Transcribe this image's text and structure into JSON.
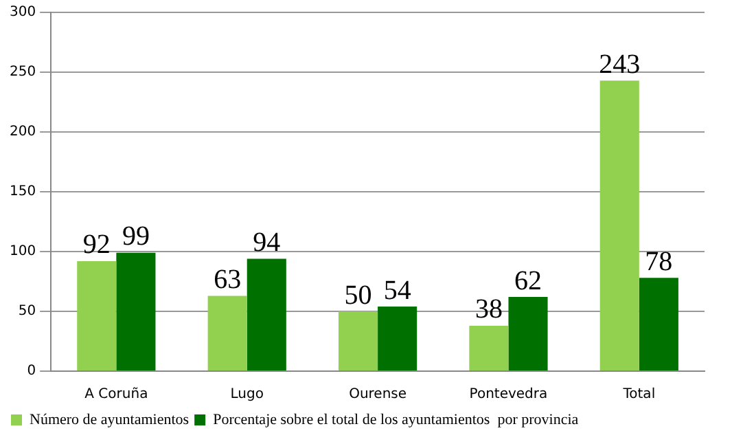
{
  "chart_data": {
    "type": "bar",
    "categories": [
      "A Coruña",
      "Lugo",
      "Ourense",
      "Pontevedra",
      "Total"
    ],
    "series": [
      {
        "name": "Número de ayuntamientos",
        "color": "#92d050",
        "values": [
          92,
          63,
          50,
          38,
          243
        ]
      },
      {
        "name": "Porcentaje sobre el total de los ayuntamientos  por provincia",
        "color": "#007000",
        "values": [
          99,
          94,
          54,
          62,
          78
        ]
      }
    ],
    "ylim": [
      0,
      300
    ],
    "yticks": [
      0,
      50,
      100,
      150,
      200,
      250,
      300
    ],
    "grid": "y",
    "legend": "bottom left",
    "data_labels": true
  }
}
